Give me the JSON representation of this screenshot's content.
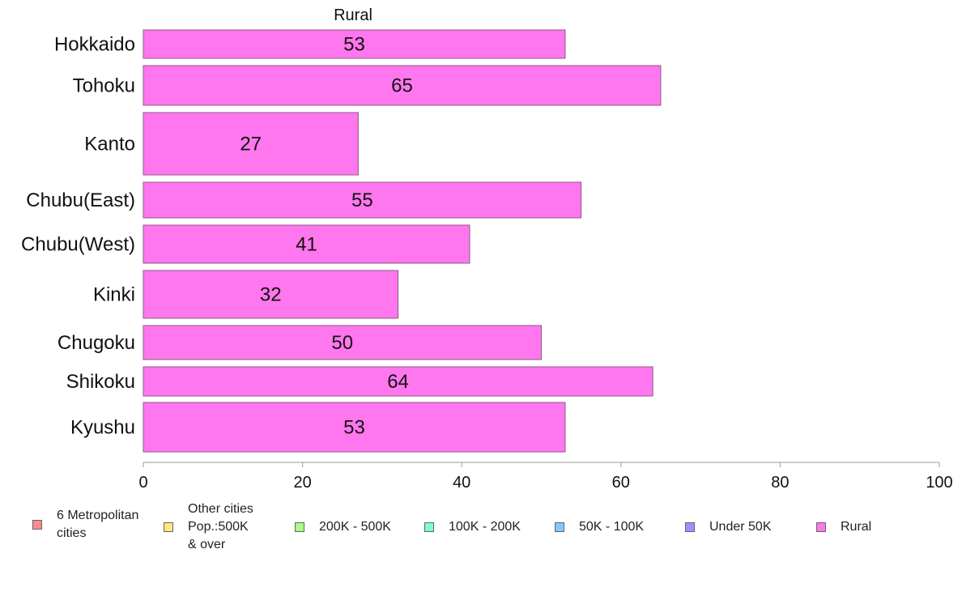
{
  "chart_data": {
    "type": "bar",
    "orientation": "horizontal",
    "title": "Rural",
    "categories": [
      "Hokkaido",
      "Tohoku",
      "Kanto",
      "Chubu(East)",
      "Chubu(West)",
      "Kinki",
      "Chugoku",
      "Shikoku",
      "Kyushu"
    ],
    "series": [
      {
        "name": "Rural",
        "values": [
          53,
          65,
          27,
          55,
          41,
          32,
          50,
          64,
          53
        ],
        "color": "#ff77ee"
      }
    ],
    "value_labels": [
      "53",
      "65",
      "27",
      "55",
      "41",
      "32",
      "50",
      "64",
      "53"
    ],
    "xlim": [
      0,
      100
    ],
    "x_ticks": [
      "0",
      "20",
      "40",
      "60",
      "80",
      "100"
    ],
    "grid": false,
    "legend_position": "bottom"
  },
  "legend": [
    {
      "label": "6 Metropolitan\n cities",
      "color": "#ff8a8a"
    },
    {
      "label": "Other cities\nPop.:500K\n & over",
      "color": "#ffe680"
    },
    {
      "label": "200K - 500K",
      "color": "#a8ff80"
    },
    {
      "label": "100K - 200K",
      "color": "#80ffcc"
    },
    {
      "label": "50K - 100K",
      "color": "#80c8ff"
    },
    {
      "label": "Under 50K",
      "color": "#a88cff"
    },
    {
      "label": "Rural",
      "color": "#ff77ee"
    }
  ]
}
